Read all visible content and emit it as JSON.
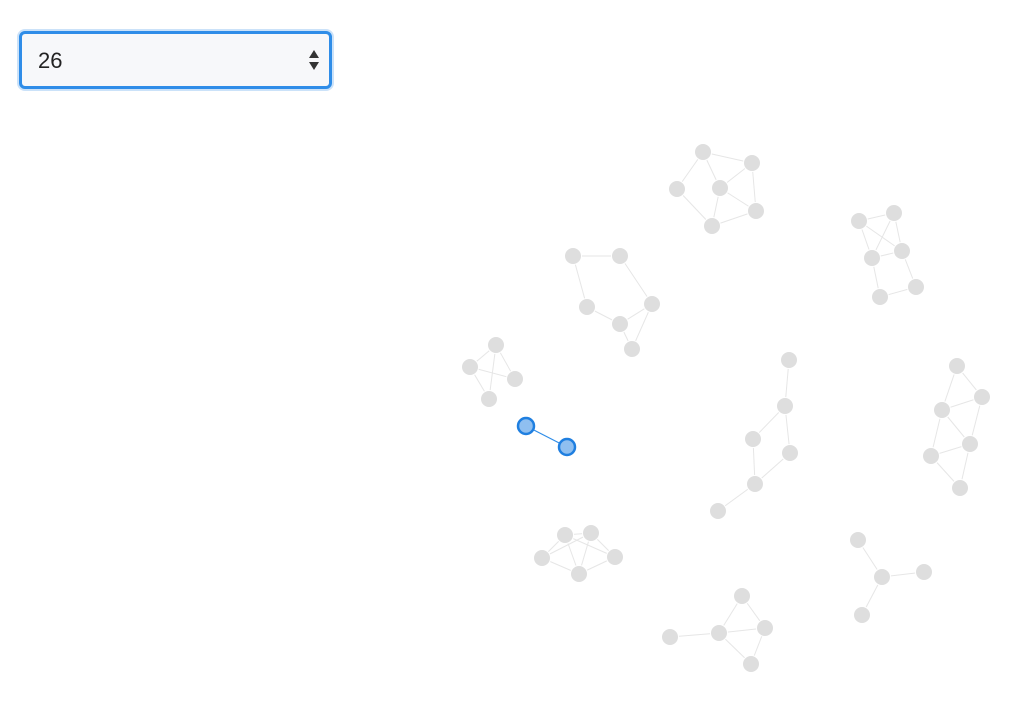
{
  "selector": {
    "value": "26",
    "options": [
      "26"
    ]
  },
  "colors": {
    "accent": "#2f8de8",
    "node": "#dedede",
    "link": "#e6e6e6"
  },
  "icons": {
    "select": "sort-arrows-icon"
  }
}
